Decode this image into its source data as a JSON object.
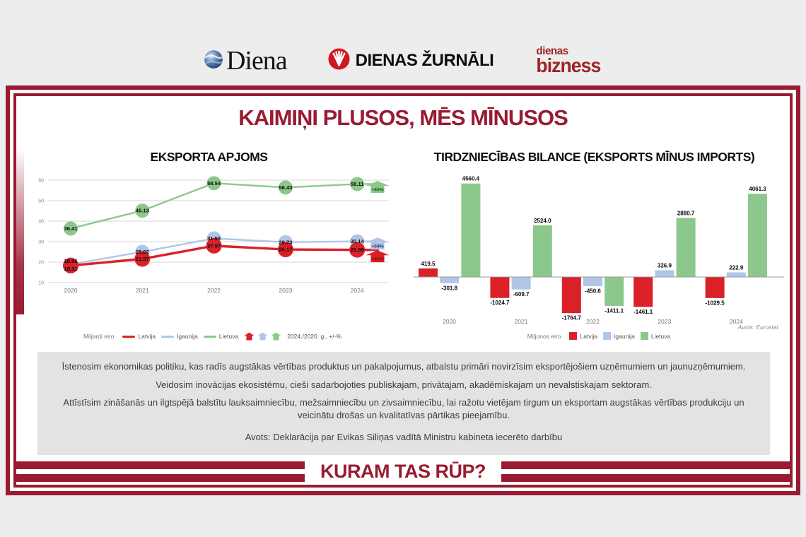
{
  "logos": {
    "diena_label": "Diena",
    "zurnali_label": "DIENAS ŽURNĀLI",
    "bizness_top": "dienas",
    "bizness_bottom": "bizness"
  },
  "headline": "KAIMIŅI PLUSOS, MĒS MĪNUSOS",
  "footer_question": "KURAM TAS RŪP?",
  "colors": {
    "maroon": "#9a1b31",
    "latvija_red": "#da2128",
    "igaunija_blue": "#b0c6e6",
    "lietuva_green": "#8cc88c",
    "panel_gray": "#e3e3e3",
    "background": "#ededed",
    "zurnali_circle_red": "#cf1820"
  },
  "chart_data": [
    {
      "type": "line",
      "title": "EKSPORTA APJOMS",
      "unit_label": "Miljardi eiro",
      "x": [
        "2020",
        "2021",
        "2022",
        "2023",
        "2024"
      ],
      "yticks": [
        10,
        20,
        30,
        40,
        50,
        60
      ],
      "ylim": [
        10,
        62
      ],
      "grid": true,
      "legend_position": "bottom",
      "legend_note": "2024./2020. g., +/-%",
      "series": [
        {
          "name": "Latvija",
          "color": "#da2128",
          "values": [
            18.31,
            21.57,
            27.97,
            26.17,
            25.99
          ],
          "change_label": "+42%",
          "change_text_color": "#7a0c12"
        },
        {
          "name": "Igaunija",
          "color": "#b0c6e6",
          "values": [
            18.96,
            25.02,
            31.58,
            29.73,
            30.14
          ],
          "change_label": "+59%",
          "change_text_color": "#1f3864"
        },
        {
          "name": "Lietuva",
          "color": "#8cc88c",
          "values": [
            36.41,
            45.13,
            58.54,
            56.43,
            58.11
          ],
          "change_label": "+60%",
          "change_text_color": "#1d5c1d"
        }
      ]
    },
    {
      "type": "bar",
      "title": "TIRDZNIECĪBAS BILANCE (EKSPORTS MĪNUS IMPORTS)",
      "unit_label": "Miljonos eiro",
      "categories": [
        "2020",
        "2021",
        "2022",
        "2023",
        "2024"
      ],
      "legend_position": "bottom",
      "grid": false,
      "series": [
        {
          "name": "Latvija",
          "color": "#da2128",
          "values": [
            419.5,
            -1024.7,
            -1764.7,
            -1461.1,
            -1029.5
          ]
        },
        {
          "name": "Igaunija",
          "color": "#b0c6e6",
          "values": [
            -301.8,
            -609.7,
            -450.6,
            326.9,
            222.9
          ]
        },
        {
          "name": "Lietuva",
          "color": "#8cc88c",
          "values": [
            4560.4,
            2524.0,
            -1411.1,
            2880.7,
            4061.3
          ]
        }
      ],
      "source": "Avots: Eurostat"
    }
  ],
  "policy": {
    "lines": [
      "Īstenosim ekonomikas politiku, kas radīs augstākas vērtības produktus un pakalpojumus, atbalstu primāri novirzīsim eksportējošiem uzņēmumiem un jaunuzņēmumiem.",
      "Veidosim inovācijas ekosistēmu, cieši sadarbojoties publiskajam, privātajam, akadēmiskajam un nevalstiskajam sektoram.",
      "Attīstīsim zināšanās un ilgtspējā balstītu lauksaimniecību, mežsaimniecību un zivsaimniecību, lai ražotu vietējam tirgum un eksportam augstākas vērtības produkciju un veicinātu drošas un kvalitatīvas pārtikas pieejamību."
    ],
    "source": "Avots: Deklarācija par Evikas Siliņas vadītā Ministru kabineta iecerēto darbību"
  }
}
